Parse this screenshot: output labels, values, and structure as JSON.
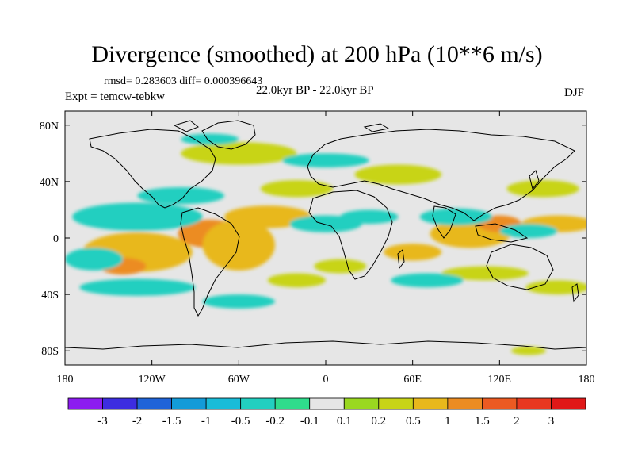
{
  "chart_data": {
    "type": "heatmap",
    "title": "Divergence (smoothed) at 200 hPa (10**6 m/s)",
    "stats_line": "rmsd= 0.283603 diff= 0.000396643",
    "period": "22.0kyr BP - 22.0kyr BP",
    "experiment": "Expt = temcw-tebkw",
    "season": "DJF",
    "xlim": [
      -180,
      180
    ],
    "ylim": [
      -90,
      90
    ],
    "x_ticks": [
      {
        "value": -180,
        "label": "180"
      },
      {
        "value": -120,
        "label": "120W"
      },
      {
        "value": -60,
        "label": "60W"
      },
      {
        "value": 0,
        "label": "0"
      },
      {
        "value": 60,
        "label": "60E"
      },
      {
        "value": 120,
        "label": "120E"
      },
      {
        "value": 180,
        "label": "180"
      }
    ],
    "y_ticks": [
      {
        "value": 80,
        "label": "80N"
      },
      {
        "value": 40,
        "label": "40N"
      },
      {
        "value": 0,
        "label": "0"
      },
      {
        "value": -40,
        "label": "40S"
      },
      {
        "value": -80,
        "label": "80S"
      }
    ],
    "colorbar": {
      "labels": [
        "-3",
        "-2",
        "-1.5",
        "-1",
        "-0.5",
        "-0.2",
        "-0.1",
        "0.1",
        "0.2",
        "0.5",
        "1",
        "1.5",
        "2",
        "3"
      ],
      "colors": [
        "#8c1cf0",
        "#3c2de0",
        "#1f63d8",
        "#139bd8",
        "#19bcd8",
        "#22cfc0",
        "#2fdc8c",
        "#e6e6e6",
        "#9ad820",
        "#c8d418",
        "#e8b81c",
        "#ec8c22",
        "#ec5a22",
        "#e83820",
        "#e01818"
      ]
    },
    "regions": [
      {
        "lon": -80,
        "lat": 3,
        "rx": 22,
        "ry": 10,
        "value": 1.2
      },
      {
        "lon": -130,
        "lat": -10,
        "rx": 38,
        "ry": 14,
        "value": 0.6
      },
      {
        "lon": -140,
        "lat": -20,
        "rx": 16,
        "ry": 6,
        "value": 1.2
      },
      {
        "lon": -60,
        "lat": -5,
        "rx": 25,
        "ry": 18,
        "value": 0.5
      },
      {
        "lon": -40,
        "lat": 15,
        "rx": 30,
        "ry": 8,
        "value": 0.6
      },
      {
        "lon": 100,
        "lat": 3,
        "rx": 28,
        "ry": 10,
        "value": 0.5
      },
      {
        "lon": 120,
        "lat": 10,
        "rx": 15,
        "ry": 6,
        "value": 1.2
      },
      {
        "lon": 160,
        "lat": 10,
        "rx": 25,
        "ry": 6,
        "value": 0.5
      },
      {
        "lon": 60,
        "lat": -10,
        "rx": 20,
        "ry": 6,
        "value": 0.6
      },
      {
        "lon": 50,
        "lat": 45,
        "rx": 30,
        "ry": 7,
        "value": 0.3
      },
      {
        "lon": -20,
        "lat": 35,
        "rx": 25,
        "ry": 6,
        "value": 0.3
      },
      {
        "lon": -60,
        "lat": 60,
        "rx": 40,
        "ry": 8,
        "value": 0.3
      },
      {
        "lon": 150,
        "lat": 35,
        "rx": 25,
        "ry": 6,
        "value": 0.3
      },
      {
        "lon": 110,
        "lat": -25,
        "rx": 30,
        "ry": 5,
        "value": 0.3
      },
      {
        "lon": 160,
        "lat": -35,
        "rx": 22,
        "ry": 5,
        "value": 0.3
      },
      {
        "lon": -20,
        "lat": -30,
        "rx": 20,
        "ry": 5,
        "value": 0.3
      },
      {
        "lon": 10,
        "lat": -20,
        "rx": 18,
        "ry": 5,
        "value": 0.3
      },
      {
        "lon": -130,
        "lat": 15,
        "rx": 45,
        "ry": 10,
        "value": -0.5
      },
      {
        "lon": -100,
        "lat": 30,
        "rx": 30,
        "ry": 6,
        "value": -0.3
      },
      {
        "lon": 0,
        "lat": 10,
        "rx": 25,
        "ry": 6,
        "value": -0.5
      },
      {
        "lon": 90,
        "lat": 15,
        "rx": 25,
        "ry": 6,
        "value": -0.5
      },
      {
        "lon": 30,
        "lat": 15,
        "rx": 20,
        "ry": 5,
        "value": -0.3
      },
      {
        "lon": -130,
        "lat": -35,
        "rx": 40,
        "ry": 6,
        "value": -0.3
      },
      {
        "lon": -160,
        "lat": -15,
        "rx": 20,
        "ry": 8,
        "value": -0.5
      },
      {
        "lon": 70,
        "lat": -30,
        "rx": 25,
        "ry": 5,
        "value": -0.3
      },
      {
        "lon": -60,
        "lat": -45,
        "rx": 25,
        "ry": 5,
        "value": -0.3
      },
      {
        "lon": 140,
        "lat": 5,
        "rx": 20,
        "ry": 5,
        "value": -0.3
      },
      {
        "lon": 0,
        "lat": 55,
        "rx": 30,
        "ry": 5,
        "value": -0.3
      },
      {
        "lon": -80,
        "lat": 70,
        "rx": 20,
        "ry": 4,
        "value": -0.3
      },
      {
        "lon": 140,
        "lat": -80,
        "rx": 12,
        "ry": 3,
        "value": 0.3
      }
    ]
  }
}
